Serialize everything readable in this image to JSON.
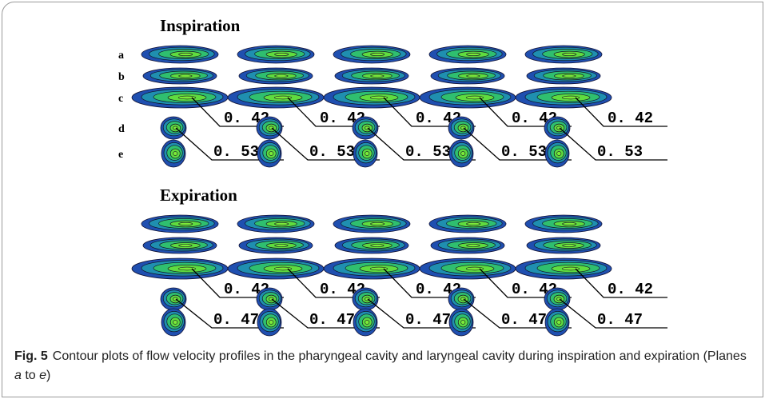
{
  "figure": {
    "panels": [
      {
        "title": "Inspiration",
        "plane_labels": [
          "a",
          "b",
          "c",
          "d",
          "e"
        ],
        "groups": [
          {
            "upper_label": "0. 42",
            "lower_label": "0. 53"
          },
          {
            "upper_label": "0. 42",
            "lower_label": "0. 53"
          },
          {
            "upper_label": "0. 42",
            "lower_label": "0. 53"
          },
          {
            "upper_label": "0. 42",
            "lower_label": "0. 53"
          },
          {
            "upper_label": "0. 42",
            "lower_label": "0. 53"
          }
        ]
      },
      {
        "title": "Expiration",
        "groups": [
          {
            "upper_label": "0. 42",
            "lower_label": "0. 47"
          },
          {
            "upper_label": "0. 42",
            "lower_label": "0. 47"
          },
          {
            "upper_label": "0. 42",
            "lower_label": "0. 47"
          },
          {
            "upper_label": "0. 42",
            "lower_label": "0. 47"
          },
          {
            "upper_label": "0. 42",
            "lower_label": "0. 47"
          }
        ]
      }
    ]
  },
  "caption": {
    "label": "Fig. 5",
    "parts": [
      "Contour plots of flow velocity profiles in the pharyngeal cavity and laryngeal cavity during inspiration and expiration (Planes ",
      "a",
      " to ",
      "e",
      ")"
    ]
  }
}
